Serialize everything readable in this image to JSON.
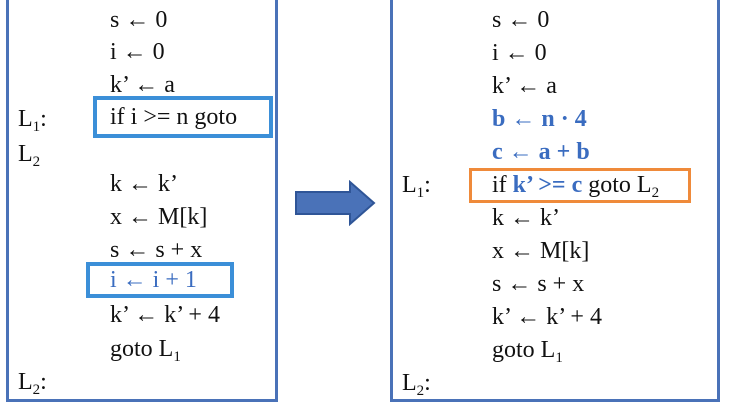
{
  "left": {
    "lines": [
      "s ← 0",
      "i ← 0",
      "k’ ← a",
      "if i >= n goto",
      "k ← k’",
      "x ← M[k]",
      "s ← s + x",
      "i ← i + 1",
      "k’ ← k’ + 4",
      "goto L"
    ],
    "goto_sub": "1",
    "labels": {
      "l1": "L",
      "l1_sub": "1",
      "l1_colon": ":",
      "l2": "L",
      "l2_sub": "2",
      "l2_end": "L",
      "l2_end_sub": "2",
      "l2_end_colon": ":"
    }
  },
  "right": {
    "lines": [
      "s ← 0",
      "i ← 0",
      "k’ ← a",
      "b ← n · 4",
      "c ← a + b",
      "k ← k’",
      "x ← M[k]",
      "s ← s + x",
      "k’ ← k’ + 4",
      "goto L"
    ],
    "if_parts": {
      "p1": "if ",
      "p2": "k’ >= c",
      "p3": " goto L",
      "sub": "2"
    },
    "goto_sub": "1",
    "labels": {
      "l1": "L",
      "l1_sub": "1",
      "l1_colon": ":",
      "l2_end": "L",
      "l2_end_sub": "2",
      "l2_end_colon": ":"
    }
  },
  "colors": {
    "panel_border": "#4a72b8",
    "highlight_box_blue": "#3b8fd8",
    "highlight_box_orange": "#ef8a3a",
    "added_code": "#3a6cc0",
    "arrow_fill": "#4a72b8"
  },
  "icons": {
    "arrow": "right-arrow-icon"
  }
}
